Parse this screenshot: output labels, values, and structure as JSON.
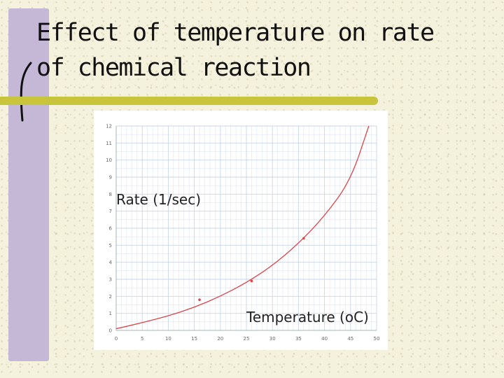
{
  "slide": {
    "title_line1": "Effect of temperature on rate",
    "title_line2": "of chemical reaction"
  },
  "colors": {
    "accent_bar": "#c4b8d6",
    "rule": "#c8c43c",
    "curve": "#d9474a",
    "grid": "#c9d6e8"
  },
  "chart_data": {
    "type": "line",
    "title": "",
    "xlabel": "Temperature (oC)",
    "ylabel": "Rate (1/sec)",
    "xlim": [
      0,
      50
    ],
    "ylim": [
      0,
      12
    ],
    "grid": true,
    "x_ticks": [
      "0",
      "5",
      "10",
      "15",
      "20",
      "25",
      "30",
      "35",
      "40",
      "45",
      "50"
    ],
    "y_ticks": [
      "0",
      "1",
      "2",
      "3",
      "4",
      "5",
      "6",
      "7",
      "8",
      "9",
      "10",
      "11",
      "12"
    ],
    "series": [
      {
        "curve": {
          "x": [
            0,
            5,
            10,
            15,
            20,
            25,
            30,
            35,
            40,
            45,
            48.5
          ],
          "y": [
            0.1,
            0.45,
            0.85,
            1.35,
            2.0,
            2.8,
            3.8,
            5.1,
            6.7,
            8.8,
            12.0
          ]
        },
        "points": {
          "x": [
            16,
            26,
            36
          ],
          "y": [
            1.8,
            2.9,
            5.4
          ]
        }
      }
    ]
  }
}
